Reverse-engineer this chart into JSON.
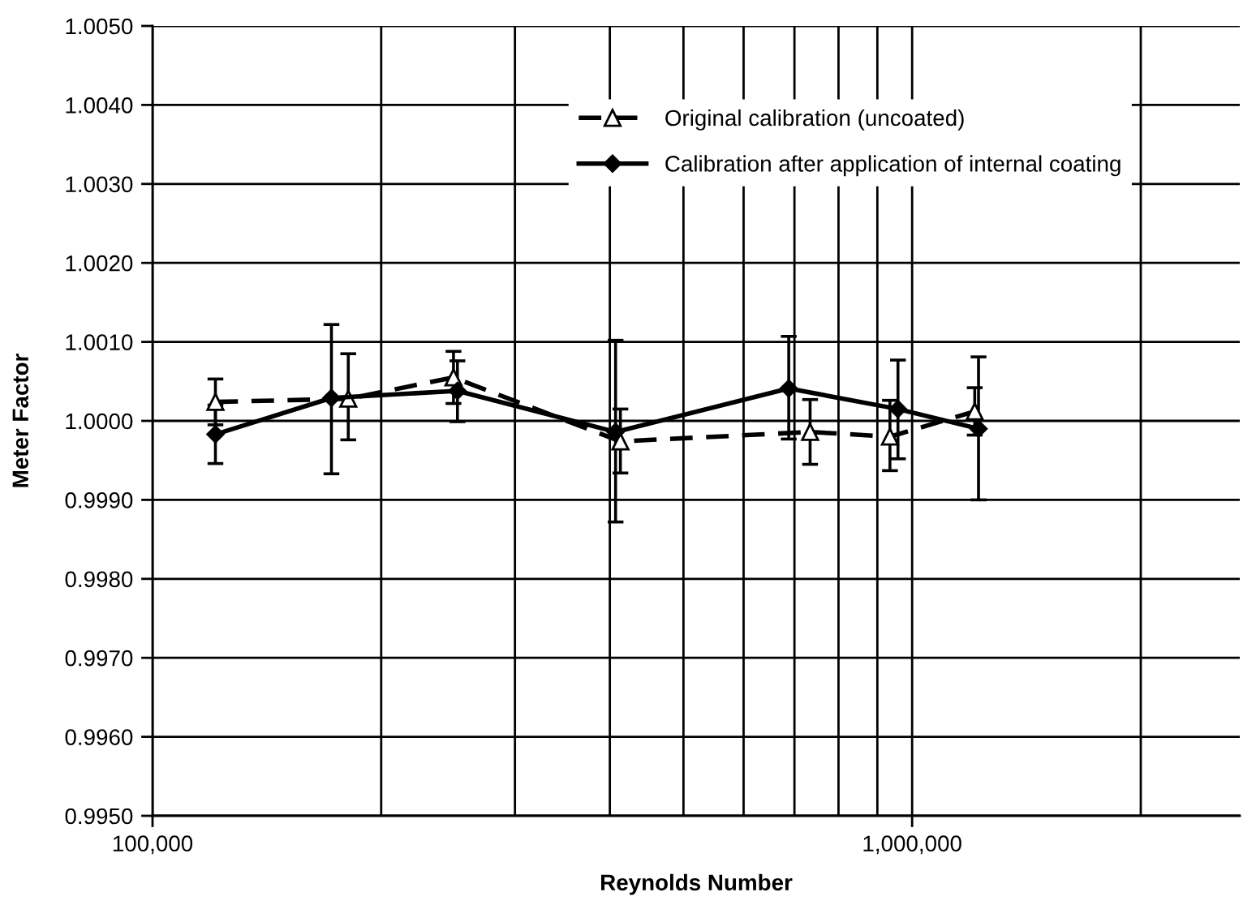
{
  "chart_data": {
    "type": "line",
    "xlabel": "Reynolds Number",
    "ylabel": "Meter Factor",
    "log": "x",
    "grid": true,
    "legend": "top right",
    "xlim": [
      100000,
      2700000
    ],
    "xticks": [
      {
        "value": 100000,
        "label": "100,000"
      },
      {
        "value": 1000000,
        "label": "1,000,000"
      }
    ],
    "ylim": [
      0.995,
      1.005
    ],
    "yticks": [
      {
        "value": 0.995,
        "label": "0.9950"
      },
      {
        "value": 0.996,
        "label": "0.9960"
      },
      {
        "value": 0.997,
        "label": "0.9970"
      },
      {
        "value": 0.998,
        "label": "0.9980"
      },
      {
        "value": 0.999,
        "label": "0.9990"
      },
      {
        "value": 1.0,
        "label": "1.0000"
      },
      {
        "value": 1.001,
        "label": "1.0010"
      },
      {
        "value": 1.002,
        "label": "1.0020"
      },
      {
        "value": 1.003,
        "label": "1.0030"
      },
      {
        "value": 1.004,
        "label": "1.0040"
      },
      {
        "value": 1.005,
        "label": "1.0050"
      }
    ],
    "series": [
      {
        "name": "Original calibration (uncoated)",
        "color": "#000000",
        "marker": "triangle",
        "line_style": "dashed",
        "x": [
          121000,
          181000,
          249000,
          413000,
          734000,
          935000,
          1209000
        ],
        "values": [
          1.00024,
          1.00028,
          1.00055,
          0.99974,
          0.99986,
          0.9998,
          1.00012
        ],
        "errors": [
          [
            0.99995,
            1.00053
          ],
          [
            0.99976,
            1.00085
          ],
          [
            1.00022,
            1.00088
          ],
          [
            0.99934,
            1.00015
          ],
          [
            0.99945,
            1.00027
          ],
          [
            0.99937,
            1.00026
          ],
          [
            0.99982,
            1.00042
          ]
        ]
      },
      {
        "name": "Calibration after application of internal coating",
        "color": "#000000",
        "marker": "diamond",
        "line_style": "solid",
        "x": [
          121000,
          172000,
          252000,
          407000,
          688000,
          958000,
          1223000
        ],
        "values": [
          0.99983,
          1.00029,
          1.00038,
          0.99986,
          1.00041,
          1.00015,
          0.9999
        ],
        "errors": [
          [
            0.99946,
            1.0002
          ],
          [
            0.99933,
            1.00122
          ],
          [
            0.99999,
            1.00076
          ],
          [
            0.99872,
            1.00102
          ],
          [
            0.99977,
            1.00107
          ],
          [
            0.99952,
            1.00077
          ],
          [
            0.999,
            1.00081
          ]
        ]
      }
    ]
  }
}
